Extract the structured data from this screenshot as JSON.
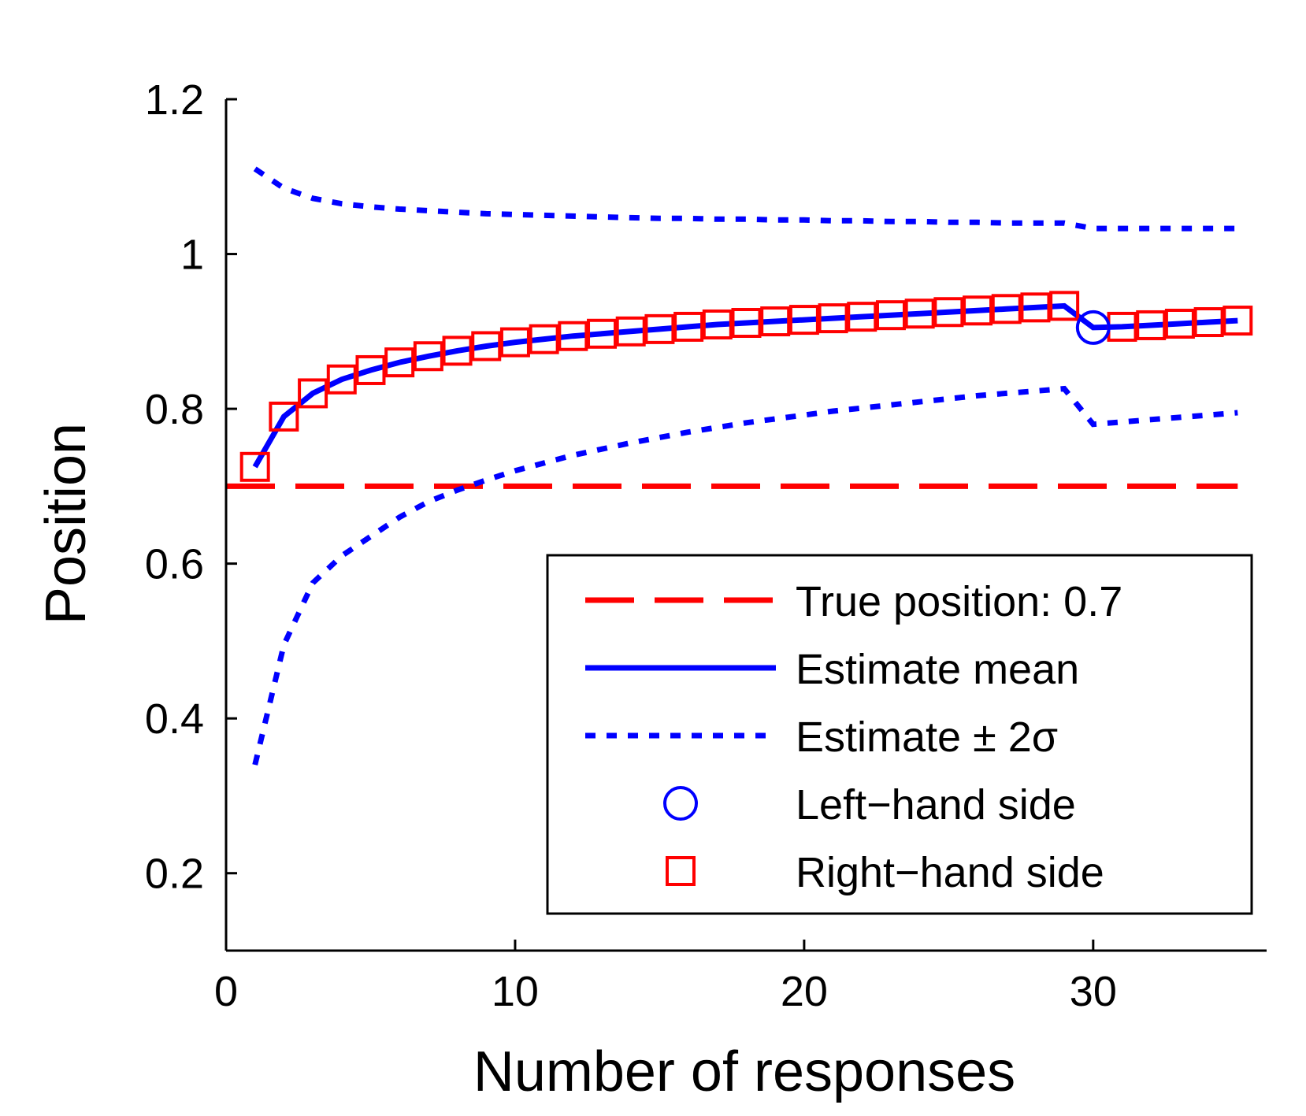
{
  "chart_data": {
    "type": "line",
    "title": "",
    "xlabel": "Number of responses",
    "ylabel": "Position",
    "xlim": [
      0,
      36
    ],
    "ylim": [
      0.1,
      1.2
    ],
    "xticks": [
      0,
      10,
      20,
      30
    ],
    "yticks": [
      0.2,
      0.4,
      0.6,
      0.8,
      1.0,
      1.2
    ],
    "xtick_labels": [
      "0",
      "10",
      "20",
      "30"
    ],
    "ytick_labels": [
      "0.2",
      "0.4",
      "0.6",
      "0.8",
      "1",
      "1.2"
    ],
    "grid": false,
    "legend_position": "lower-right",
    "colors": {
      "red": "#ff0000",
      "blue": "#0000ff"
    },
    "true_position": {
      "name": "True position: 0.7",
      "value": 0.7,
      "x_range": [
        0,
        35
      ]
    },
    "x": [
      1,
      2,
      3,
      4,
      5,
      6,
      7,
      8,
      9,
      10,
      11,
      12,
      13,
      14,
      15,
      16,
      17,
      18,
      19,
      20,
      21,
      22,
      23,
      24,
      25,
      26,
      27,
      28,
      29,
      30,
      31,
      32,
      33,
      34,
      35
    ],
    "series": [
      {
        "name": "Estimate mean",
        "style": "solid",
        "values": [
          0.725,
          0.79,
          0.82,
          0.838,
          0.85,
          0.86,
          0.868,
          0.875,
          0.881,
          0.886,
          0.89,
          0.894,
          0.897,
          0.9,
          0.903,
          0.906,
          0.909,
          0.911,
          0.913,
          0.915,
          0.917,
          0.919,
          0.921,
          0.923,
          0.925,
          0.927,
          0.929,
          0.931,
          0.933,
          0.905,
          0.906,
          0.908,
          0.91,
          0.912,
          0.914
        ]
      },
      {
        "name": "Estimate ± 2σ",
        "style": "dotted",
        "upper": [
          1.11,
          1.085,
          1.072,
          1.065,
          1.061,
          1.058,
          1.056,
          1.054,
          1.052,
          1.051,
          1.05,
          1.049,
          1.048,
          1.047,
          1.046,
          1.046,
          1.045,
          1.045,
          1.044,
          1.044,
          1.043,
          1.043,
          1.042,
          1.042,
          1.041,
          1.041,
          1.04,
          1.04,
          1.04,
          1.033,
          1.033,
          1.033,
          1.033,
          1.033,
          1.033
        ],
        "lower": [
          0.34,
          0.495,
          0.575,
          0.61,
          0.635,
          0.66,
          0.68,
          0.695,
          0.708,
          0.72,
          0.73,
          0.74,
          0.748,
          0.756,
          0.763,
          0.77,
          0.776,
          0.782,
          0.787,
          0.792,
          0.797,
          0.801,
          0.805,
          0.809,
          0.813,
          0.817,
          0.82,
          0.823,
          0.826,
          0.78,
          0.783,
          0.786,
          0.789,
          0.792,
          0.795
        ]
      }
    ],
    "markers": {
      "left_hand_side": {
        "name": "Left−hand side",
        "shape": "circle",
        "x": [
          30
        ],
        "y": [
          0.905
        ]
      },
      "right_hand_side": {
        "name": "Right−hand side",
        "shape": "square",
        "x": [
          1,
          2,
          3,
          4,
          5,
          6,
          7,
          8,
          9,
          10,
          11,
          12,
          13,
          14,
          15,
          16,
          17,
          18,
          19,
          20,
          21,
          22,
          23,
          24,
          25,
          26,
          27,
          28,
          29,
          31,
          32,
          33,
          34,
          35
        ],
        "y": [
          0.725,
          0.79,
          0.82,
          0.838,
          0.85,
          0.86,
          0.868,
          0.875,
          0.881,
          0.886,
          0.89,
          0.894,
          0.897,
          0.9,
          0.903,
          0.906,
          0.909,
          0.911,
          0.913,
          0.915,
          0.917,
          0.919,
          0.921,
          0.923,
          0.925,
          0.927,
          0.929,
          0.931,
          0.933,
          0.906,
          0.908,
          0.91,
          0.912,
          0.914
        ]
      }
    },
    "legend": [
      {
        "label": "True position: 0.7",
        "style": "dashed",
        "color": "#ff0000"
      },
      {
        "label": "Estimate mean",
        "style": "solid",
        "color": "#0000ff"
      },
      {
        "label": "Estimate ± 2σ",
        "style": "dotted",
        "color": "#0000ff"
      },
      {
        "label": "Left−hand side",
        "style": "circle",
        "color": "#0000ff"
      },
      {
        "label": "Right−hand side",
        "style": "square",
        "color": "#ff0000"
      }
    ]
  }
}
